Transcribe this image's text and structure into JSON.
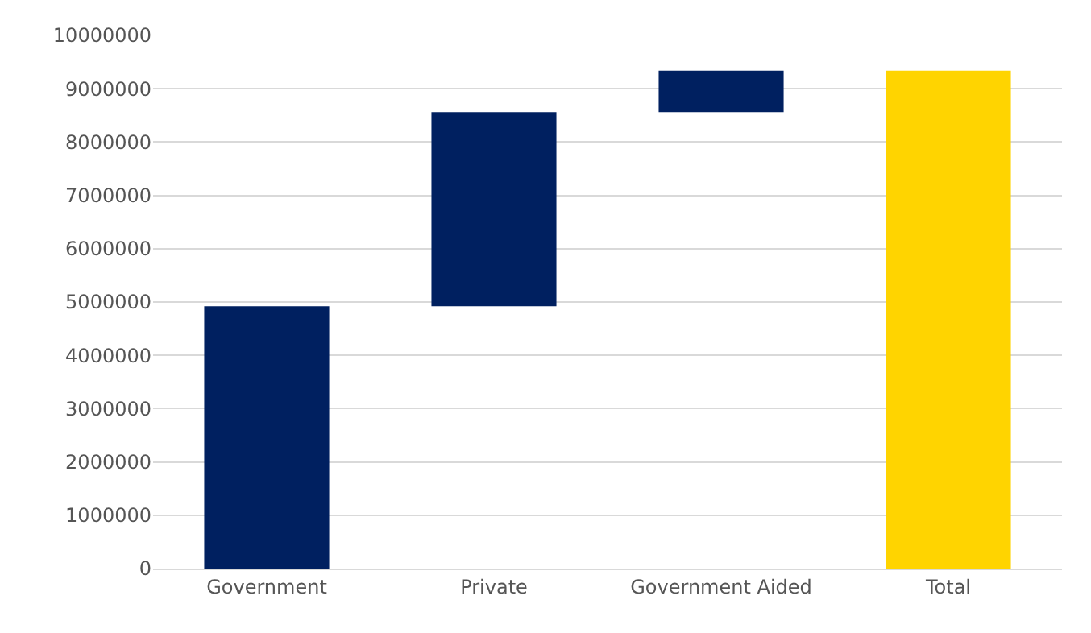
{
  "chart_data": {
    "type": "bar",
    "categories": [
      "Government",
      "Private",
      "Government Aided",
      "Total"
    ],
    "values": [
      4920000,
      3640000,
      780000,
      9340000
    ],
    "base": [
      0,
      4920000,
      8560000,
      0
    ],
    "colors": [
      "#002060",
      "#002060",
      "#002060",
      "#ffd400"
    ],
    "ylim": [
      0,
      10000000
    ],
    "yticks": [
      0,
      1000000,
      2000000,
      3000000,
      4000000,
      5000000,
      6000000,
      7000000,
      8000000,
      9000000,
      10000000
    ],
    "grid": "y"
  }
}
